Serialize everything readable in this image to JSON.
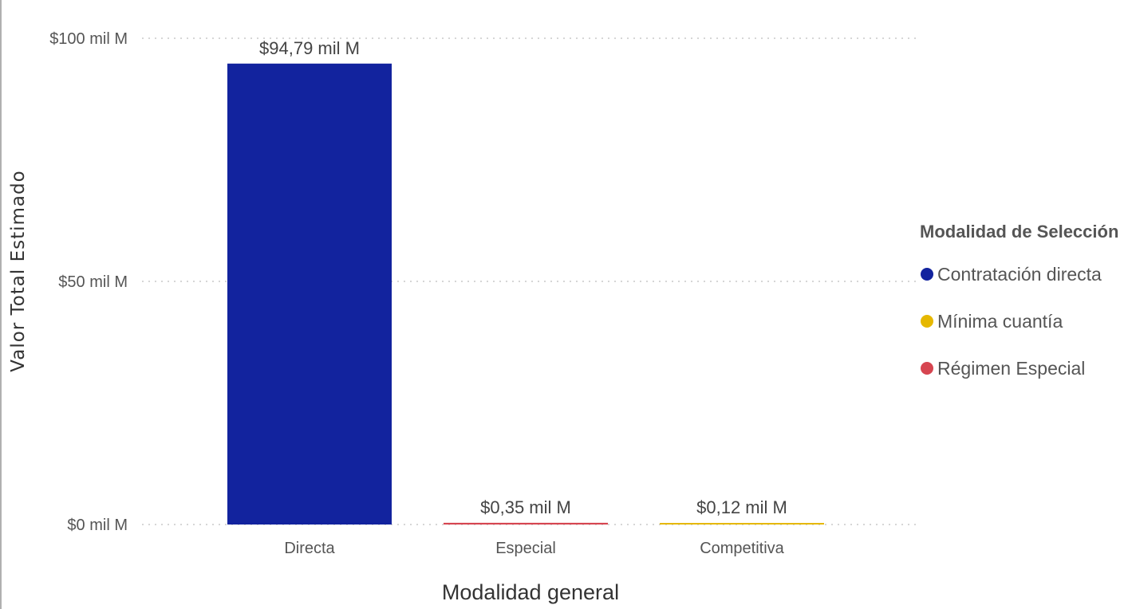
{
  "chart_data": {
    "type": "bar",
    "title": "",
    "xlabel": "Modalidad general",
    "ylabel": "Valor Total Estimado",
    "ylim": [
      0,
      100
    ],
    "y_ticks": [
      {
        "value": 0,
        "label": "$0 mil M"
      },
      {
        "value": 50,
        "label": "$50 mil M"
      },
      {
        "value": 100,
        "label": "$100 mil M"
      }
    ],
    "grid": true,
    "categories": [
      "Directa",
      "Especial",
      "Competitiva"
    ],
    "values": [
      94.79,
      0.35,
      0.12
    ],
    "data_labels": [
      "$94,79 mil M",
      "$0,35 mil M",
      "$0,12 mil M"
    ],
    "bar_colors": [
      "#12239e",
      "#d64550",
      "#e6b800"
    ],
    "legend": {
      "title": "Modalidad de Selección",
      "placement": "right",
      "items": [
        {
          "label": "Contratación directa",
          "color": "#12239e"
        },
        {
          "label": "Mínima cuantía",
          "color": "#e6b800"
        },
        {
          "label": "Régimen Especial",
          "color": "#d64550"
        }
      ]
    }
  }
}
